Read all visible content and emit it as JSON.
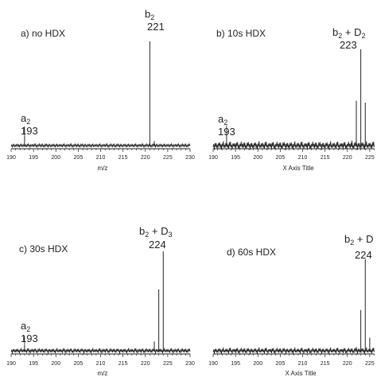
{
  "figure": {
    "panels": [
      {
        "label": "a) no HDX",
        "xlabel": "m/z",
        "xticks": [
          "190",
          "195",
          "200",
          "205",
          "210",
          "215",
          "220",
          "225",
          "230"
        ],
        "annotations": [
          {
            "ion": "a",
            "sub": "2",
            "suffix": "",
            "mz": "193"
          },
          {
            "ion": "b",
            "sub": "2",
            "suffix": "",
            "mz": "221"
          }
        ]
      },
      {
        "label": "b) 10s HDX",
        "xlabel": "X Axis Title",
        "xticks": [
          "190",
          "195",
          "200",
          "205",
          "210",
          "215",
          "220",
          "225"
        ],
        "annotations": [
          {
            "ion": "a",
            "sub": "2",
            "suffix": "",
            "mz": "193"
          },
          {
            "ion": "b",
            "sub": "2",
            "suffix": " + D",
            "suffix_sub": "2",
            "mz": "223"
          }
        ]
      },
      {
        "label": "c) 30s HDX",
        "xlabel": "m/z",
        "xticks": [
          "190",
          "195",
          "200",
          "205",
          "210",
          "215",
          "220",
          "225",
          "230"
        ],
        "annotations": [
          {
            "ion": "a",
            "sub": "2",
            "suffix": "",
            "mz": "193"
          },
          {
            "ion": "b",
            "sub": "2",
            "suffix": " + D",
            "suffix_sub": "3",
            "mz": "224"
          }
        ]
      },
      {
        "label": "d) 60s HDX",
        "xlabel": "X Axis Title",
        "xticks": [
          "190",
          "195",
          "200",
          "205",
          "210",
          "215",
          "220",
          "225"
        ],
        "annotations": [
          {
            "ion": "b",
            "sub": "2",
            "suffix": " + D",
            "suffix_sub": "",
            "mz": "224"
          }
        ]
      }
    ]
  },
  "chart_data": [
    {
      "type": "line",
      "title": "a) no HDX",
      "xlabel": "m/z",
      "ylabel": "",
      "xlim": [
        190,
        230
      ],
      "peaks": [
        {
          "x": 193,
          "y": 0.1
        },
        {
          "x": 221,
          "y": 1.0
        },
        {
          "x": 222,
          "y": 0.05
        }
      ],
      "noise_level": 0.02
    },
    {
      "type": "line",
      "title": "b) 10s HDX",
      "xlabel": "X Axis Title",
      "ylabel": "",
      "xlim": [
        190,
        226
      ],
      "peaks": [
        {
          "x": 193,
          "y": 0.12
        },
        {
          "x": 221,
          "y": 0.06
        },
        {
          "x": 222,
          "y": 0.47
        },
        {
          "x": 223,
          "y": 1.0
        },
        {
          "x": 224,
          "y": 0.45
        }
      ],
      "noise_level": 0.05
    },
    {
      "type": "line",
      "title": "c) 30s HDX",
      "xlabel": "m/z",
      "ylabel": "",
      "xlim": [
        190,
        230
      ],
      "peaks": [
        {
          "x": 193,
          "y": 0.06
        },
        {
          "x": 222,
          "y": 0.1
        },
        {
          "x": 223,
          "y": 0.62
        },
        {
          "x": 224,
          "y": 1.0
        }
      ],
      "noise_level": 0.03
    },
    {
      "type": "line",
      "title": "d) 60s HDX",
      "xlabel": "X Axis Title",
      "ylabel": "",
      "xlim": [
        190,
        226
      ],
      "peaks": [
        {
          "x": 222,
          "y": 0.05
        },
        {
          "x": 223,
          "y": 0.45
        },
        {
          "x": 224,
          "y": 1.0
        },
        {
          "x": 225,
          "y": 0.15
        }
      ],
      "noise_level": 0.04
    }
  ]
}
